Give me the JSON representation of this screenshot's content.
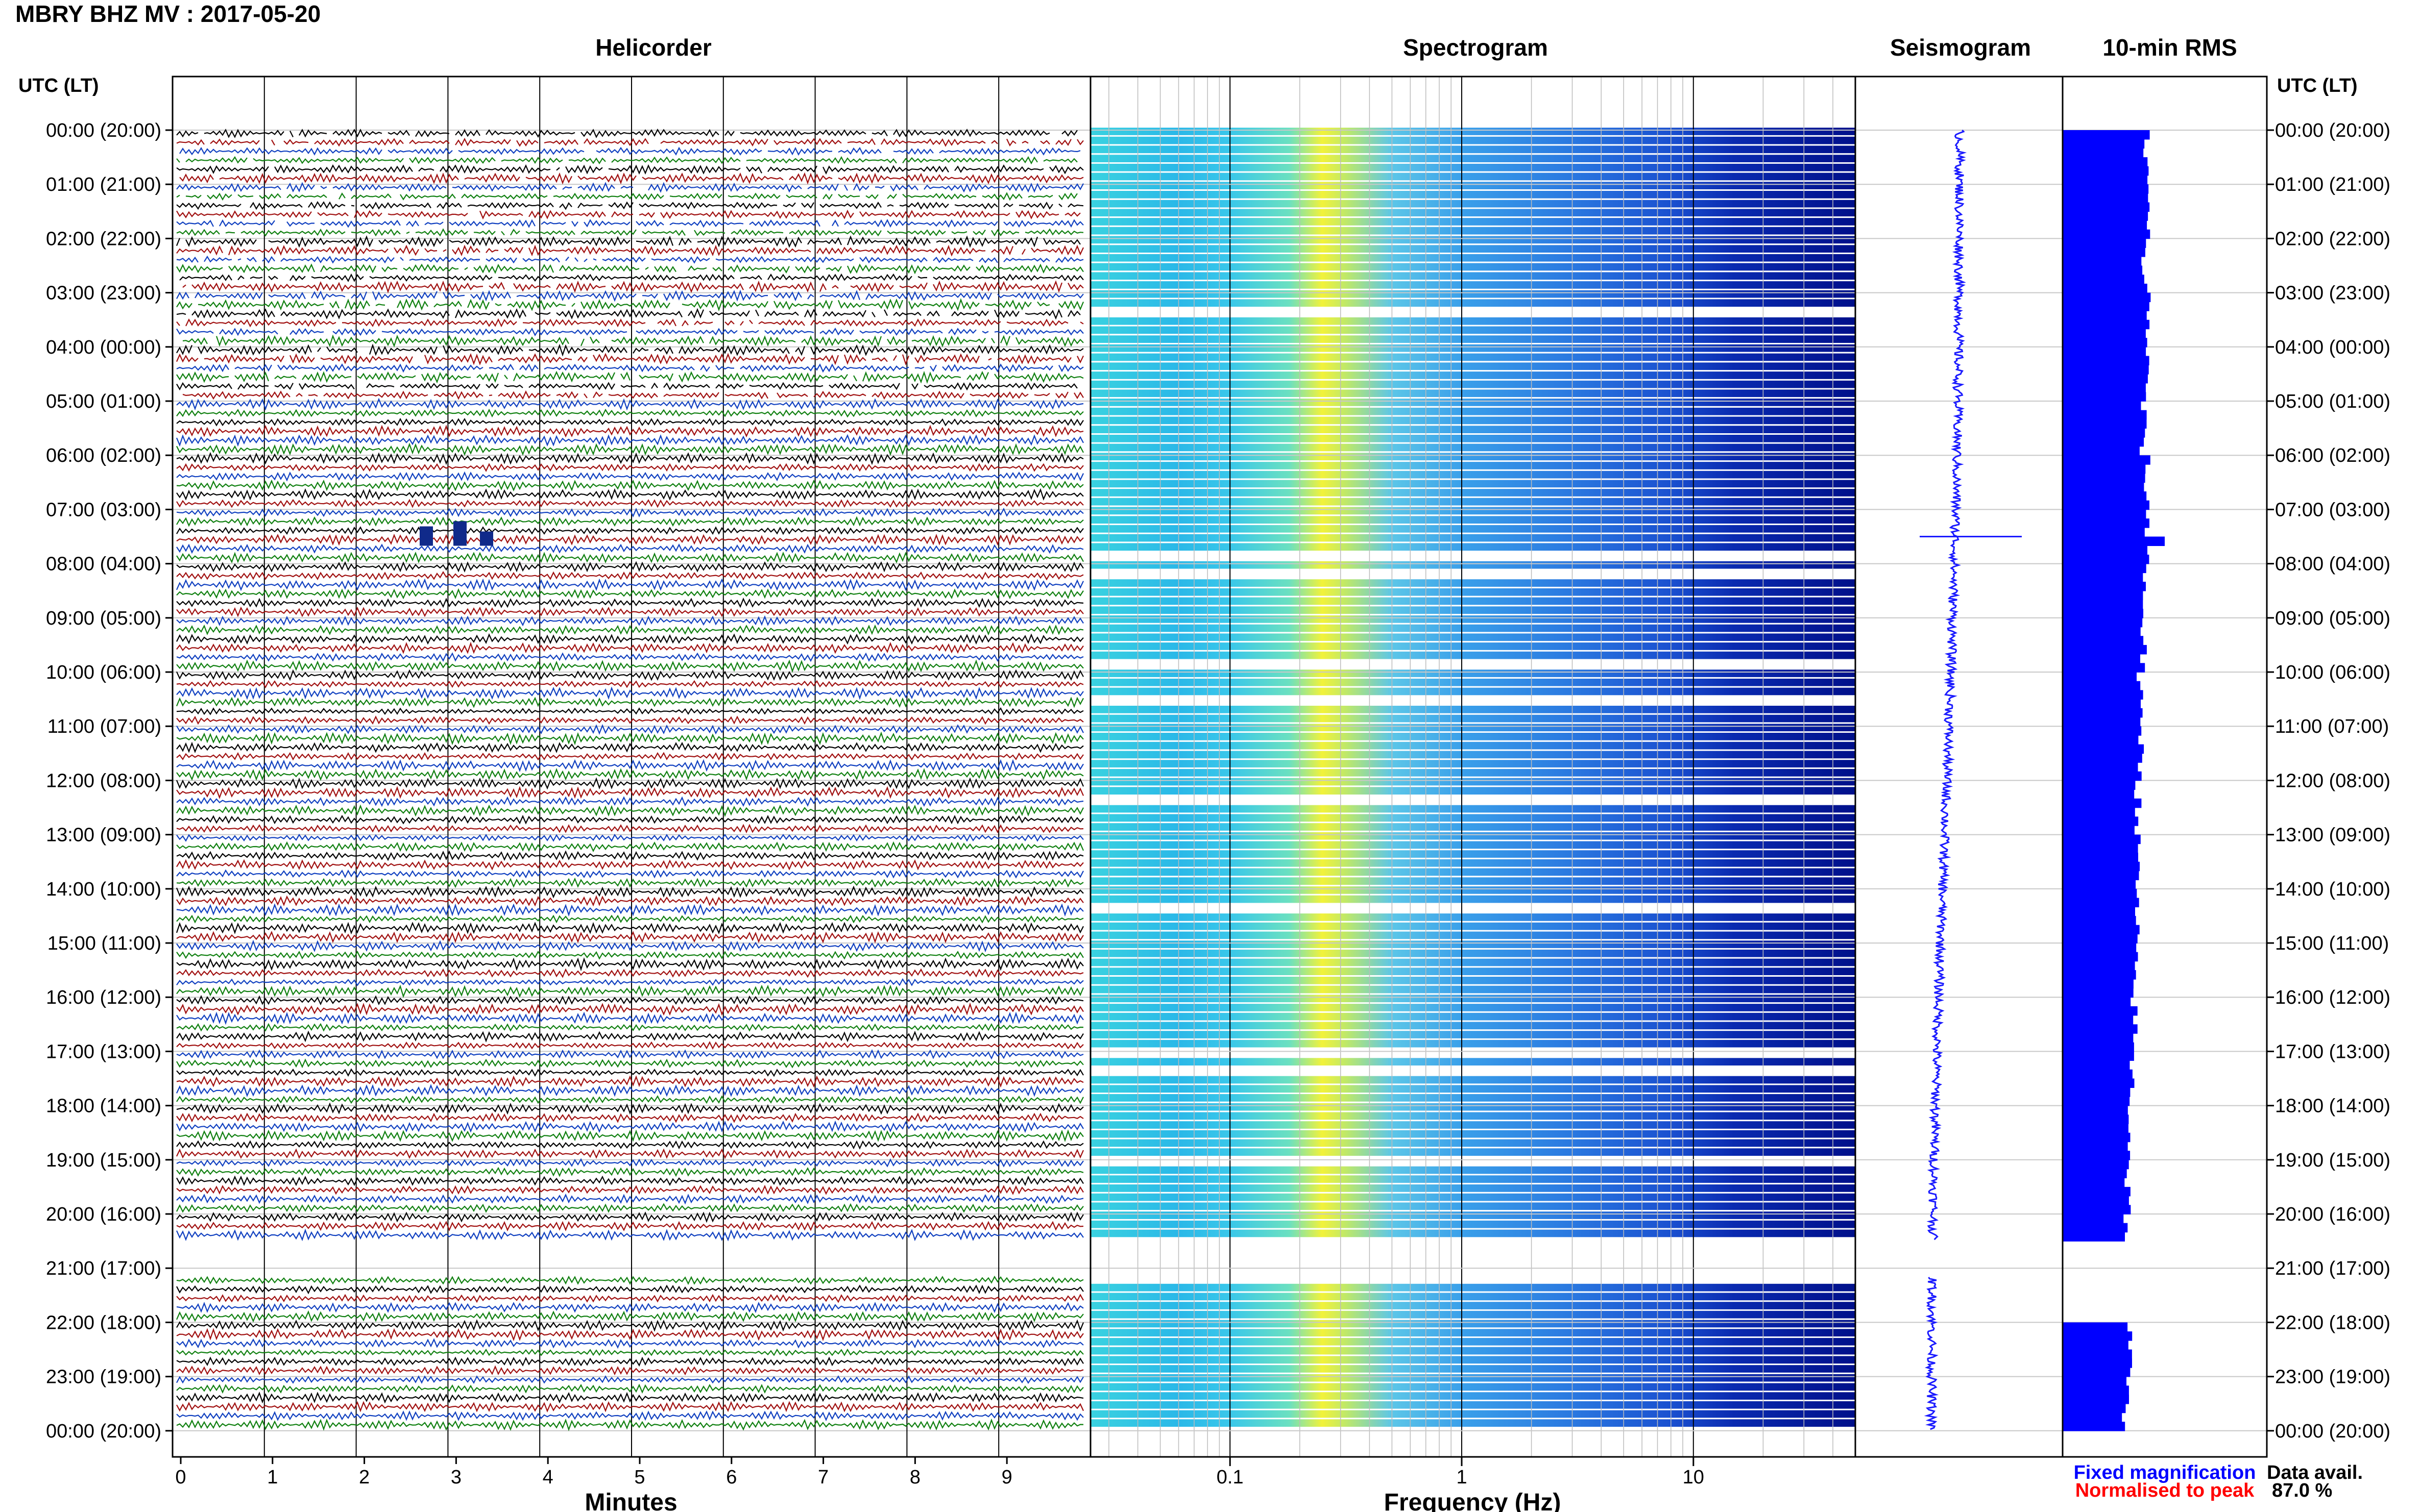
{
  "page_title": "MBRY BHZ MV : 2017-05-20",
  "panels": {
    "helicorder": "Helicorder",
    "spectrogram": "Spectrogram",
    "seismogram": "Seismogram",
    "rms": "10-min RMS"
  },
  "time_axis_header": "UTC (LT)",
  "time_labels": [
    "00:00 (20:00)",
    "01:00 (21:00)",
    "02:00 (22:00)",
    "03:00 (23:00)",
    "04:00 (00:00)",
    "05:00 (01:00)",
    "06:00 (02:00)",
    "07:00 (03:00)",
    "08:00 (04:00)",
    "09:00 (05:00)",
    "10:00 (06:00)",
    "11:00 (07:00)",
    "12:00 (08:00)",
    "13:00 (09:00)",
    "14:00 (10:00)",
    "15:00 (11:00)",
    "16:00 (12:00)",
    "17:00 (13:00)",
    "18:00 (14:00)",
    "19:00 (15:00)",
    "20:00 (16:00)",
    "21:00 (17:00)",
    "22:00 (18:00)",
    "23:00 (19:00)",
    "00:00 (20:00)"
  ],
  "footer": {
    "fixed_magnification": "Fixed magnification",
    "normalised_to_peak": "Normalised to peak",
    "data_avail_label": "Data avail.",
    "data_avail_value": "87.0 %"
  },
  "colors": {
    "trace_cycle": [
      "#000000",
      "#a01010",
      "#1040c0",
      "#108010"
    ],
    "rms_bar": "#0000ff",
    "fixed_magnification": "#0000ff",
    "normalised_to_peak": "#ff0000"
  },
  "chart_data": [
    {
      "type": "line",
      "title": "Helicorder",
      "xlabel": "Minutes",
      "ylabel": "UTC (LT)",
      "x_ticks": [
        "0",
        "1",
        "2",
        "3",
        "4",
        "5",
        "6",
        "7",
        "8",
        "9"
      ],
      "xlim": [
        0,
        10
      ],
      "rows_per_hour": 6,
      "total_rows": 144,
      "gaps_hours": [
        [
          20.5,
          21.1
        ]
      ],
      "event_hour": 7.5
    },
    {
      "type": "heatmap",
      "title": "Spectrogram",
      "xlabel": "Frequency (Hz)",
      "x_scale": "log",
      "xlim": [
        0.025,
        50
      ],
      "x_ticks": [
        "0.1",
        "1",
        "10"
      ],
      "colormap": "jet",
      "peak_frequency_hz": 0.25
    },
    {
      "type": "line",
      "title": "Seismogram",
      "note": "one trace per 10-min row, fixed magnification",
      "event_hour": 7.5
    },
    {
      "type": "bar",
      "title": "10-min RMS",
      "orientation": "horizontal",
      "rms_hourly_relative": [
        0.82,
        0.83,
        0.8,
        0.84,
        0.82,
        0.79,
        0.82,
        0.84,
        0.8,
        0.79,
        0.75,
        0.77,
        0.74,
        0.73,
        0.72,
        0.7,
        0.7,
        0.68,
        0.66,
        0.64,
        0.63,
        null,
        0.65,
        0.62
      ]
    }
  ]
}
